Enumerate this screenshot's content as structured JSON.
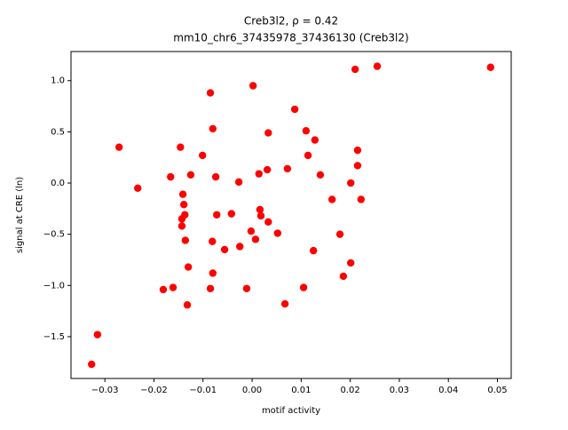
{
  "chart_data": {
    "type": "scatter",
    "title": "Creb3l2, ρ = 0.42",
    "subtitle": "mm10_chr6_37435978_37436130 (Creb3l2)",
    "x_label": "motif activity",
    "y_label": "signal at CRE (ln)",
    "color": "#ff0000",
    "x": [
      -0.0327,
      -0.0315,
      -0.0271,
      -0.0233,
      -0.0181,
      -0.0166,
      -0.0161,
      -0.0146,
      -0.0143,
      -0.0143,
      -0.0141,
      -0.0139,
      -0.0137,
      -0.0136,
      -0.013,
      -0.0132,
      -0.0125,
      -0.0101,
      -0.0085,
      -0.0085,
      -0.0081,
      -0.008,
      -0.008,
      -0.0074,
      -0.0072,
      -0.0056,
      -0.0042,
      -0.0027,
      -0.0025,
      -0.0011,
      -0.0002,
      0.0002,
      0.0007,
      0.0014,
      0.0016,
      0.0018,
      0.0031,
      0.0033,
      0.0033,
      0.0052,
      0.0067,
      0.0072,
      0.0087,
      0.0105,
      0.011,
      0.0114,
      0.0125,
      0.0128,
      0.0139,
      0.0163,
      0.0179,
      0.0186,
      0.0201,
      0.0201,
      0.021,
      0.0215,
      0.0215,
      0.0222,
      0.0255,
      0.0486
    ],
    "values": [
      -1.77,
      -1.48,
      0.35,
      -0.05,
      -1.04,
      0.06,
      -1.02,
      0.35,
      -0.35,
      -0.42,
      -0.11,
      -0.21,
      -0.31,
      -0.56,
      -0.82,
      -1.19,
      0.08,
      0.27,
      0.88,
      -1.03,
      -0.57,
      0.53,
      -0.88,
      0.06,
      -0.31,
      -0.65,
      -0.3,
      0.01,
      -0.62,
      -1.03,
      -0.47,
      0.95,
      -0.55,
      0.09,
      -0.26,
      -0.32,
      0.13,
      0.49,
      -0.38,
      -0.49,
      -1.18,
      0.14,
      0.72,
      -1.02,
      0.51,
      0.27,
      -0.66,
      0.42,
      0.08,
      -0.16,
      -0.5,
      -0.91,
      0.0,
      -0.78,
      1.11,
      0.32,
      0.17,
      -0.16,
      1.14,
      1.13
    ],
    "xlim": [
      -0.0369,
      0.0528
    ],
    "ylim": [
      -1.908,
      1.284
    ],
    "xticks": [
      {
        "value": -0.03,
        "label": "−0.03"
      },
      {
        "value": -0.02,
        "label": "−0.02"
      },
      {
        "value": -0.01,
        "label": "−0.01"
      },
      {
        "value": 0,
        "label": "0.00"
      },
      {
        "value": 0.01,
        "label": "0.01"
      },
      {
        "value": 0.02,
        "label": "0.02"
      },
      {
        "value": 0.03,
        "label": "0.03"
      },
      {
        "value": 0.04,
        "label": "0.04"
      },
      {
        "value": 0.05,
        "label": "0.05"
      }
    ],
    "yticks": [
      {
        "value": -1.5,
        "label": "−1.5"
      },
      {
        "value": -1,
        "label": "−1.0"
      },
      {
        "value": -0.5,
        "label": "−0.5"
      },
      {
        "value": 0,
        "label": "0.0"
      },
      {
        "value": 0.5,
        "label": "0.5"
      },
      {
        "value": 1,
        "label": "1.0"
      }
    ]
  }
}
